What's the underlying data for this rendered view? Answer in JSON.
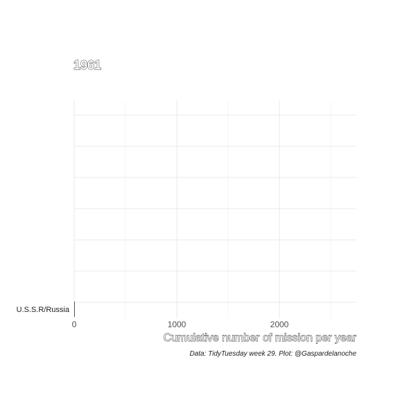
{
  "chart_data": {
    "type": "bar",
    "orientation": "horizontal",
    "title": "1961",
    "xlabel": "Cumulative number of mission per year",
    "caption": "Data: TidyTuesday week 29. Plot: @Gaspardelanoche",
    "categories": [
      "U.S.S.R/Russia"
    ],
    "values": [
      5
    ],
    "xlim": [
      0,
      2750
    ],
    "xticks": [
      {
        "value": 0,
        "label": "0"
      },
      {
        "value": 1000,
        "label": "1000"
      },
      {
        "value": 2000,
        "label": "2000"
      }
    ],
    "grid": true,
    "legend": "none",
    "colors": {
      "bar": "#555555",
      "grid": "#e3e3e3"
    }
  }
}
